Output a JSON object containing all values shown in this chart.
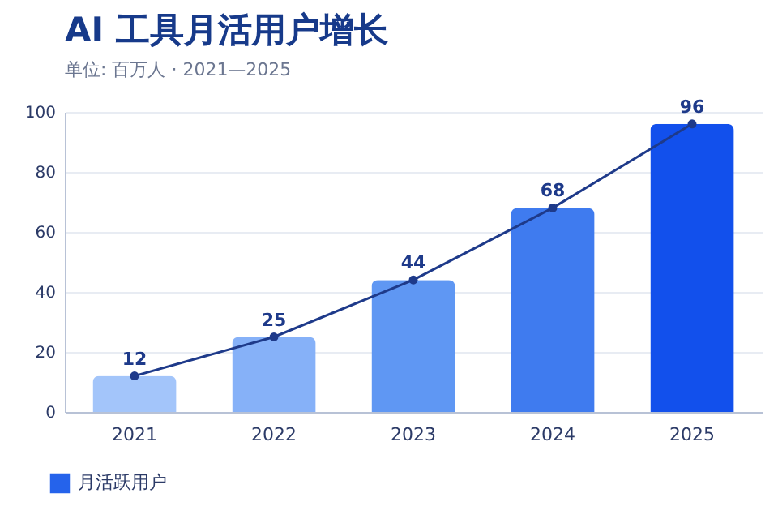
{
  "chart_data": {
    "type": "bar",
    "title": "AI 工具月活用户增长",
    "subtitle": "单位: 百万人 · 2021—2025",
    "categories": [
      "2021",
      "2022",
      "2023",
      "2024",
      "2025"
    ],
    "series": [
      {
        "name": "月活跃用户",
        "type": "bar",
        "color": "#2563eb",
        "colors": [
          "#a3c5fa",
          "#86b1f8",
          "#5f97f3",
          "#3f7bef",
          "#1250ec"
        ],
        "values": [
          12,
          25,
          44,
          68,
          96
        ]
      },
      {
        "type": "line",
        "color": "#1e3a8a",
        "values": [
          12,
          25,
          44,
          68,
          96
        ],
        "value_labels": [
          "12",
          "25",
          "44",
          "68",
          "96"
        ]
      }
    ],
    "ylim": [
      0,
      100
    ],
    "yticks": [
      0,
      20,
      40,
      60,
      80,
      100
    ],
    "grid": "y",
    "legend": "bottom left",
    "marker": "circle"
  }
}
